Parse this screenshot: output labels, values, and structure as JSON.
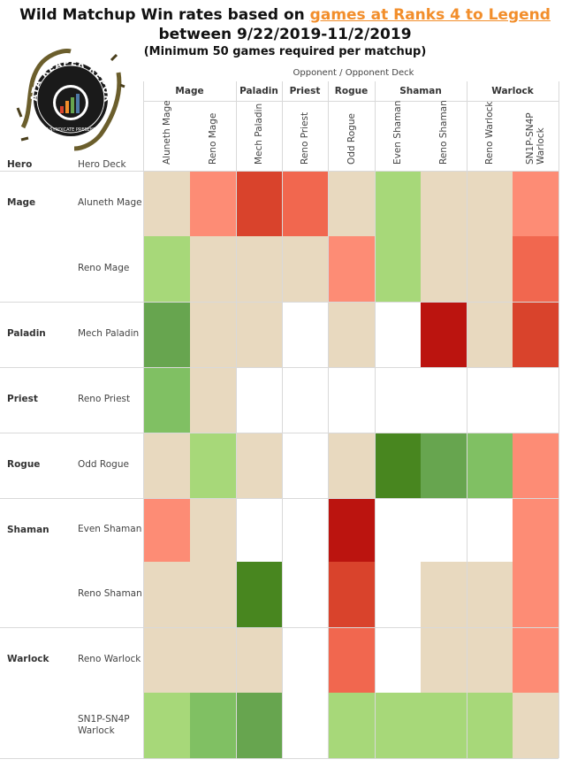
{
  "title": {
    "line1_prefix": "Wild Matchup Win rates based on ",
    "line1_link": "games at Ranks 4 to Legend",
    "line2": "between 9/22/2019-11/2/2019",
    "line3": "(Minimum 50 games required per matchup)"
  },
  "logo": {
    "text": "DATA REAPER REPORT",
    "subtext": "VS SYNDICATE PRESENTS"
  },
  "header": {
    "opponent": "Opponent  /  Opponent Deck",
    "hero": "Hero",
    "hero_deck": "Hero Deck"
  },
  "colors": {
    "strong_favor": "#48861f",
    "favor": "#67a54f",
    "slight_favor": "#80c063",
    "lean_favor": "#a7d879",
    "even": "#e8d9bf",
    "lean_unfavor": "#fd8c75",
    "slight_unfavor": "#f1674f",
    "unfavor": "#d9432c",
    "strong_unfavor": "#bb140f",
    "no_data": "#ffffff"
  },
  "chart_data": {
    "type": "heatmap",
    "opponent_classes": [
      {
        "name": "Mage",
        "span": 2
      },
      {
        "name": "Paladin",
        "span": 1
      },
      {
        "name": "Priest",
        "span": 1
      },
      {
        "name": "Rogue",
        "span": 1
      },
      {
        "name": "Shaman",
        "span": 2
      },
      {
        "name": "Warlock",
        "span": 2
      }
    ],
    "opponent_decks": [
      "Aluneth Mage",
      "Reno Mage",
      "Mech Paladin",
      "Reno Priest",
      "Odd Rogue",
      "Even Shaman",
      "Reno Shaman",
      "Reno Warlock",
      "SN1P-SN4P Warlock"
    ],
    "hero_classes": [
      {
        "name": "Mage",
        "span": 2
      },
      {
        "name": "Paladin",
        "span": 1
      },
      {
        "name": "Priest",
        "span": 1
      },
      {
        "name": "Rogue",
        "span": 1
      },
      {
        "name": "Shaman",
        "span": 2
      },
      {
        "name": "Warlock",
        "span": 2
      }
    ],
    "hero_decks": [
      "Aluneth Mage",
      "Reno Mage",
      "Mech Paladin",
      "Reno Priest",
      "Odd Rogue",
      "Even Shaman",
      "Reno Shaman",
      "Reno Warlock",
      "SN1P-SN4P Warlock"
    ],
    "matrix": [
      [
        "even",
        "lean_unfavor",
        "unfavor",
        "slight_unfavor",
        "even",
        "lean_favor",
        "even",
        "even",
        "lean_unfavor"
      ],
      [
        "lean_favor",
        "even",
        "even",
        "even",
        "lean_unfavor",
        "lean_favor",
        "even",
        "even",
        "slight_unfavor"
      ],
      [
        "favor",
        "even",
        "even",
        "no_data",
        "even",
        "no_data",
        "strong_unfavor",
        "even",
        "unfavor"
      ],
      [
        "slight_favor",
        "even",
        "no_data",
        "no_data",
        "no_data",
        "no_data",
        "no_data",
        "no_data",
        "no_data"
      ],
      [
        "even",
        "lean_favor",
        "even",
        "no_data",
        "even",
        "strong_favor",
        "favor",
        "slight_favor",
        "lean_unfavor"
      ],
      [
        "lean_unfavor",
        "even",
        "no_data",
        "no_data",
        "strong_unfavor",
        "no_data",
        "no_data",
        "no_data",
        "lean_unfavor"
      ],
      [
        "even",
        "even",
        "strong_favor",
        "no_data",
        "unfavor",
        "no_data",
        "even",
        "even",
        "lean_unfavor"
      ],
      [
        "even",
        "even",
        "even",
        "no_data",
        "slight_unfavor",
        "no_data",
        "even",
        "even",
        "lean_unfavor"
      ],
      [
        "lean_favor",
        "slight_favor",
        "favor",
        "no_data",
        "lean_favor",
        "lean_favor",
        "lean_favor",
        "lean_favor",
        "even"
      ]
    ]
  }
}
